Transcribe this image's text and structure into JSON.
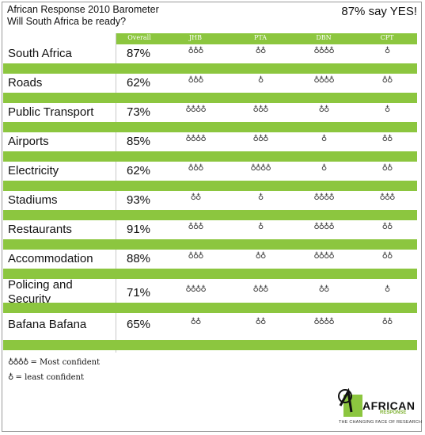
{
  "header": {
    "title_line1": "African Response 2010 Barometer",
    "title_line2": "Will South Africa be ready?",
    "headline": "87% say YES!"
  },
  "columns": {
    "overall": "Overall",
    "jhb": "JHB",
    "pta": "PTA",
    "dbn": "DBN",
    "cpt": "CPT"
  },
  "icon_glyph": "♁",
  "rows": [
    {
      "label": "South Africa",
      "overall": "87%",
      "jhb": 3,
      "pta": 2,
      "dbn": 4,
      "cpt": 1
    },
    {
      "label": "Roads",
      "overall": "62%",
      "jhb": 3,
      "pta": 1,
      "dbn": 4,
      "cpt": 2
    },
    {
      "label": "Public Transport",
      "overall": "73%",
      "jhb": 4,
      "pta": 3,
      "dbn": 2,
      "cpt": 1
    },
    {
      "label": "Airports",
      "overall": "85%",
      "jhb": 4,
      "pta": 3,
      "dbn": 1,
      "cpt": 2
    },
    {
      "label": "Electricity",
      "overall": "62%",
      "jhb": 3,
      "pta": 4,
      "dbn": 1,
      "cpt": 2
    },
    {
      "label": "Stadiums",
      "overall": "93%",
      "jhb": 2,
      "pta": 1,
      "dbn": 4,
      "cpt": 3
    },
    {
      "label": "Restaurants",
      "overall": "91%",
      "jhb": 3,
      "pta": 1,
      "dbn": 4,
      "cpt": 2
    },
    {
      "label": "Accommodation",
      "overall": "88%",
      "jhb": 3,
      "pta": 2,
      "dbn": 4,
      "cpt": 2
    },
    {
      "label_line1": "Policing and",
      "label_line2": "Security",
      "overall": "71%",
      "jhb": 4,
      "pta": 3,
      "dbn": 2,
      "cpt": 1
    },
    {
      "label": "Bafana Bafana",
      "overall": "65%",
      "jhb": 2,
      "pta": 2,
      "dbn": 4,
      "cpt": 2
    }
  ],
  "legend": {
    "most_icons": "♁♁♁♁",
    "most_text": "= Most confident",
    "least_icons": "♁",
    "least_text": "= least confident"
  },
  "logo": {
    "brand": "AFRICAN",
    "sub": "RESPONSE",
    "tagline": "THE CHANGING FACE OF RESEARCH"
  },
  "colors": {
    "accent_green": "#8cc63f",
    "text": "#111111"
  }
}
